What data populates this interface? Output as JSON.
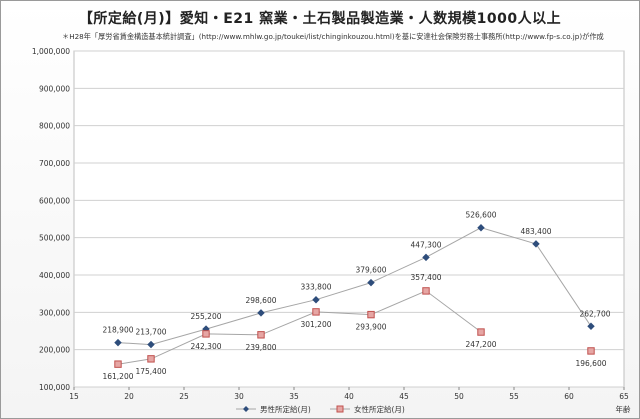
{
  "title": "【所定給(月)】愛知・E21 窯業・土石製品製造業・人数規模1000人以上",
  "subtitle": "＊H28年「厚労省賃金構造基本統計調査」(http://www.mhlw.go.jp/toukei/list/chinginkouzou.html)を基に安達社会保険労務士事務所(http://www.fp-s.co.jp)が作成",
  "chart_data": {
    "type": "line",
    "title": "【所定給(月)】愛知・E21 窯業・土石製品製造業・人数規模1000人以上",
    "xlabel": "年齢",
    "ylabel": "",
    "xlim": [
      15,
      65
    ],
    "ylim": [
      100000,
      1000000
    ],
    "x_ticks": [
      "15",
      "20",
      "25",
      "30",
      "35",
      "40",
      "45",
      "50",
      "55",
      "60",
      "65"
    ],
    "y_ticks": [
      "100,000",
      "200,000",
      "300,000",
      "400,000",
      "500,000",
      "600,000",
      "700,000",
      "800,000",
      "900,000",
      "1,000,000"
    ],
    "grid": "horizontal",
    "legend_position": "bottom",
    "series": [
      {
        "name": "男性所定給(月)",
        "color": "#2e4d7b",
        "marker": "diamond",
        "x": [
          19,
          22,
          27,
          32,
          37,
          42,
          47,
          52,
          57,
          62
        ],
        "y": [
          218900,
          213700,
          255200,
          298600,
          333800,
          379600,
          447300,
          526600,
          483400,
          262700
        ],
        "labels": [
          "218,900",
          "213,700",
          "255,200",
          "298,600",
          "333,800",
          "379,600",
          "447,300",
          "526,600",
          "483,400",
          "262,700"
        ]
      },
      {
        "name": "女性所定給(月)",
        "color": "#c0504d",
        "marker": "square",
        "x": [
          19,
          22,
          27,
          32,
          37,
          42,
          47,
          52,
          62
        ],
        "y": [
          161200,
          175400,
          242300,
          239800,
          301200,
          293900,
          357400,
          247200,
          196600
        ],
        "labels": [
          "161,200",
          "175,400",
          "242,300",
          "239,800",
          "301,200",
          "293,900",
          "357,400",
          "247,200",
          "196,600"
        ],
        "segments": [
          [
            0,
            7
          ],
          [
            8,
            8
          ]
        ]
      }
    ]
  }
}
